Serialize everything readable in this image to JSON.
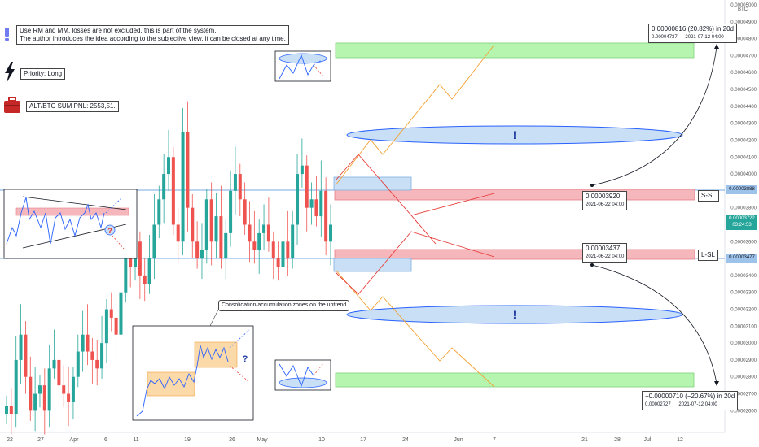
{
  "chart_data": {
    "type": "candlestick",
    "pair_unit": "BTC",
    "y_axis": {
      "min": 2.52e-05,
      "max": 5e-05,
      "ticks": [
        "0.00005000",
        "0.00004900",
        "0.00004800",
        "0.00004700",
        "0.00004600",
        "0.00004500",
        "0.00004400",
        "0.00004300",
        "0.00004200",
        "0.00004100",
        "0.00004000",
        "0.00003900",
        "0.00003800",
        "0.00003700",
        "0.00003600",
        "0.00003500",
        "0.00003400",
        "0.00003300",
        "0.00003200",
        "0.00003100",
        "0.00003000",
        "0.00002900",
        "0.00002800",
        "0.00002700",
        "0.00002600"
      ],
      "price_labels": {
        "upper": "0.00003888",
        "current": "0.00003722",
        "countdown": "03:24:53",
        "lower": "0.00003477"
      }
    },
    "x_axis": {
      "ticks": [
        "22",
        "27",
        "Apr",
        "6",
        "11",
        "19",
        "26",
        "May",
        "10",
        "17",
        "24",
        "Jun",
        "7",
        "21",
        "28",
        "Jul",
        "12"
      ]
    },
    "closes": [
      2.63,
      2.58,
      2.9,
      3.05,
      2.8,
      2.6,
      2.7,
      2.75,
      2.6,
      2.85,
      2.9,
      2.75,
      2.7,
      2.65,
      2.8,
      2.95,
      3.05,
      2.95,
      2.9,
      2.85,
      3.0,
      3.2,
      3.15,
      3.05,
      3.3,
      3.5,
      3.45,
      3.6,
      3.4,
      3.35,
      3.5,
      3.7,
      3.85,
      4.0,
      4.1,
      3.7,
      3.6,
      4.25,
      3.8,
      3.6,
      3.5,
      3.55,
      3.85,
      3.6,
      3.75,
      3.5,
      3.65,
      3.9,
      4.0,
      3.85,
      3.7,
      3.6,
      3.55,
      3.65,
      3.7,
      3.6,
      3.5,
      3.45,
      3.6,
      3.5,
      3.7,
      4.0,
      4.05,
      3.8,
      3.85,
      3.75,
      3.9,
      3.6,
      3.7
    ],
    "zones": {
      "short_sl": "S-SL",
      "long_sl": "L-SL",
      "upper_target": "0.00004700",
      "lower_target": "0.00002750"
    },
    "annotations": {
      "upper_entry_price": "0.00003920",
      "upper_entry_date": "2021-06-22 04:00",
      "lower_entry_price": "0.00003437",
      "lower_entry_date": "2021-06-22 04:00",
      "upper_change": "0.00000816 (20.82%) in 20d",
      "upper_target_price": "0.00004737",
      "upper_target_date": "2021-07-12  04:00",
      "lower_change": "−0.00000710 (−20.67%) in 20d",
      "lower_target_price": "0.00002727",
      "lower_target_date": "2021-07-12  04:00",
      "exclaim": "!",
      "question": "?"
    }
  },
  "notes": {
    "disclaimer_line1": "Use RM and MM, losses are not excluded, this is part of the system.",
    "disclaimer_line2": "The author introduces the idea according to the subjective view, it can be closed at any time.",
    "priority": "Priority: Long",
    "pnl": "ALT/BTC SUM PNL: 2553,51.",
    "consolidation": "Consolidation/accumulation zones on the uptrend"
  },
  "colors": {
    "up": "#26a69a",
    "down": "#ef5350",
    "zone_red": "#f5b7bb",
    "zone_green": "#b6f5b0",
    "zone_blue": "#c9dff5",
    "line_blue": "#2962ff",
    "info_blue": "#1e3a9e"
  },
  "icons": [
    "exclamation-icon",
    "lightning-icon",
    "briefcase-icon"
  ]
}
